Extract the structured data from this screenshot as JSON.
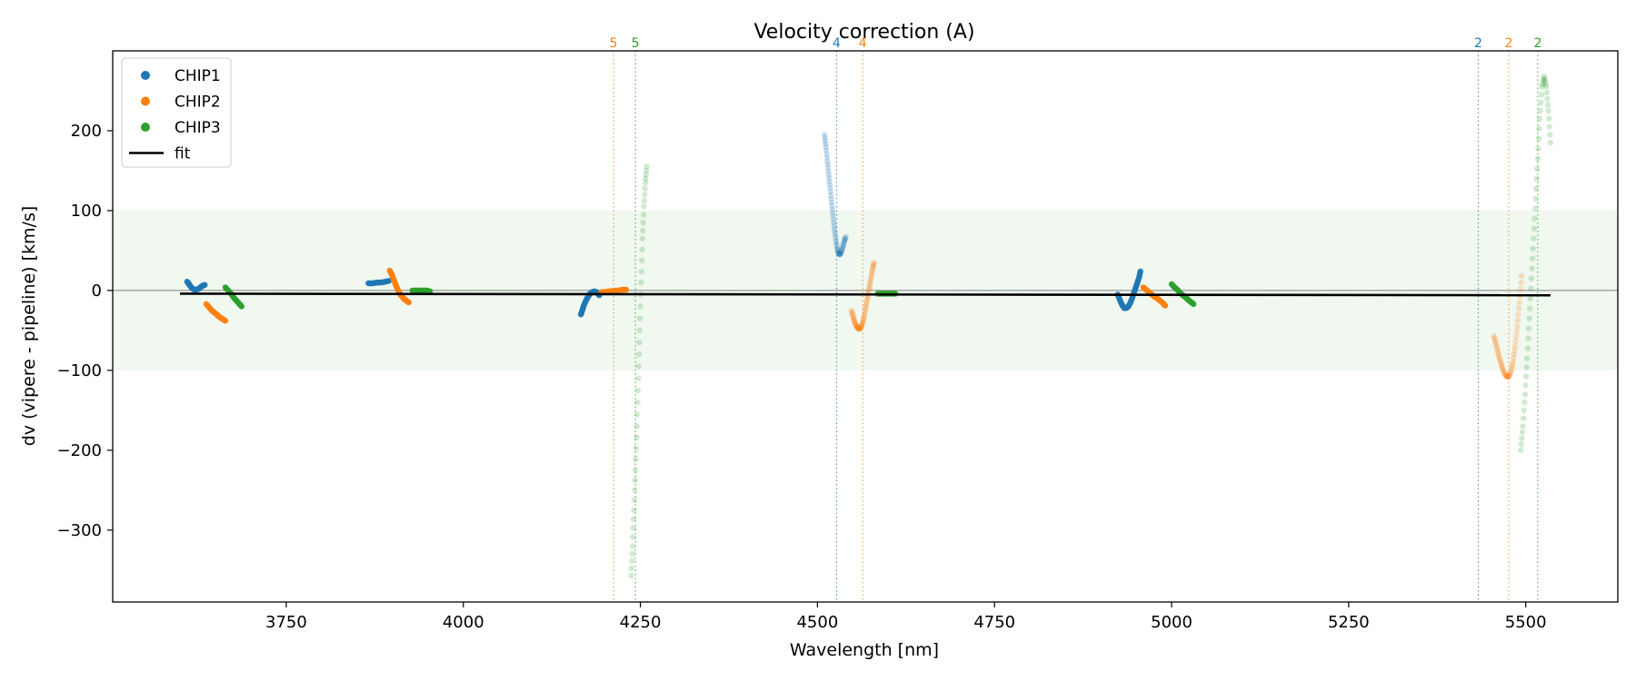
{
  "chart_data": {
    "type": "scatter",
    "title": "Velocity correction (A)",
    "xlabel": "Wavelength [nm]",
    "ylabel": "dv (vipere - pipeline) [km/s]",
    "xlim": [
      3505,
      5630
    ],
    "ylim": [
      -390,
      300
    ],
    "xticks": [
      3750,
      4000,
      4250,
      4500,
      4750,
      5000,
      5250,
      5500
    ],
    "yticks": [
      -300,
      -200,
      -100,
      0,
      100,
      200
    ],
    "ytick_labels": [
      "−300",
      "−200",
      "−100",
      "0",
      "100",
      "200"
    ],
    "tolerance_band": [
      -100,
      100
    ],
    "band_color": "#2ca02c",
    "zero_line": 0,
    "legend": {
      "position": "top-left",
      "entries": [
        {
          "label": "CHIP1",
          "color": "#1f77b4",
          "kind": "dot"
        },
        {
          "label": "CHIP2",
          "color": "#ff7f0e",
          "kind": "dot"
        },
        {
          "label": "CHIP3",
          "color": "#2ca02c",
          "kind": "dot"
        },
        {
          "label": "fit",
          "color": "#000000",
          "kind": "line"
        }
      ]
    },
    "fit": {
      "x": [
        3600,
        5535
      ],
      "y": [
        -4,
        -6
      ],
      "color": "#000000"
    },
    "order_markers": [
      {
        "x": 4212,
        "label": "5",
        "color": "#ff7f0e"
      },
      {
        "x": 4243,
        "label": "5",
        "color": "#2ca02c"
      },
      {
        "x": 4527,
        "label": "4",
        "color": "#1f77b4"
      },
      {
        "x": 4564,
        "label": "4",
        "color": "#ff7f0e"
      },
      {
        "x": 5433,
        "label": "2",
        "color": "#1f77b4"
      },
      {
        "x": 5476,
        "label": "2",
        "color": "#ff7f0e"
      },
      {
        "x": 5517,
        "label": "2",
        "color": "#2ca02c"
      }
    ],
    "series": [
      {
        "name": "CHIP1",
        "color": "#1f77b4",
        "segments": [
          {
            "alpha": 0.9,
            "x": [
              3610,
              3612,
              3614,
              3617,
              3620,
              3623,
              3626,
              3629,
              3632,
              3635
            ],
            "y": [
              11,
              9,
              6,
              3,
              1,
              1,
              2,
              4,
              6,
              7
            ]
          },
          {
            "alpha": 0.9,
            "x": [
              3866,
              3872,
              3878,
              3884,
              3890,
              3895
            ],
            "y": [
              9,
              9,
              10,
              10,
              11,
              12
            ]
          },
          {
            "alpha": 0.9,
            "x": [
              4166,
              4168,
              4170,
              4173,
              4176,
              4179,
              4182,
              4185,
              4188,
              4190,
              4192
            ],
            "y": [
              -30,
              -25,
              -19,
              -13,
              -8,
              -4,
              -2,
              -1,
              -2,
              -4,
              -6
            ]
          },
          {
            "alpha": 0.22,
            "x": [
              4510,
              4512,
              4514,
              4516,
              4518,
              4520,
              4522,
              4524,
              4526,
              4528,
              4530,
              4532,
              4534,
              4536,
              4538,
              4540
            ],
            "y": [
              195,
              180,
              162,
              145,
              128,
              110,
              93,
              77,
              63,
              52,
              46,
              45,
              49,
              55,
              62,
              67
            ]
          },
          {
            "alpha": 0.9,
            "x": [
              4924,
              4927,
              4930,
              4933,
              4936,
              4939,
              4942,
              4945,
              4948,
              4951,
              4954,
              4956
            ],
            "y": [
              -5,
              -12,
              -18,
              -22,
              -22,
              -20,
              -15,
              -8,
              0,
              8,
              16,
              24
            ]
          }
        ]
      },
      {
        "name": "CHIP2",
        "color": "#ff7f0e",
        "segments": [
          {
            "alpha": 0.9,
            "x": [
              3637,
              3641,
              3645,
              3649,
              3653,
              3657,
              3661,
              3664
            ],
            "y": [
              -17,
              -21,
              -25,
              -28,
              -31,
              -34,
              -36,
              -38
            ]
          },
          {
            "alpha": 0.9,
            "x": [
              3896,
              3899,
              3902,
              3905,
              3908,
              3911,
              3914,
              3917,
              3920,
              3923
            ],
            "y": [
              25,
              20,
              13,
              6,
              0,
              -5,
              -8,
              -11,
              -13,
              -15
            ]
          },
          {
            "alpha": 0.9,
            "x": [
              4195,
              4200,
              4205,
              4210,
              4215,
              4220,
              4225,
              4230
            ],
            "y": [
              -2,
              -2,
              -1,
              -1,
              0,
              0,
              1,
              1
            ]
          },
          {
            "alpha": 0.22,
            "x": [
              4548,
              4550,
              4552,
              4554,
              4556,
              4558,
              4560,
              4562,
              4564,
              4566,
              4568,
              4570,
              4572,
              4574,
              4576,
              4578,
              4580
            ],
            "y": [
              -25,
              -32,
              -38,
              -43,
              -46,
              -48,
              -48,
              -45,
              -40,
              -32,
              -22,
              -12,
              -2,
              8,
              18,
              28,
              35
            ]
          },
          {
            "alpha": 0.9,
            "x": [
              4960,
              4964,
              4968,
              4972,
              4976,
              4980,
              4984,
              4988,
              4991
            ],
            "y": [
              4,
              1,
              -2,
              -5,
              -8,
              -10,
              -13,
              -16,
              -19
            ]
          },
          {
            "alpha": 0.22,
            "x": [
              5455,
              5458,
              5461,
              5464,
              5467,
              5470,
              5473,
              5476,
              5479,
              5482,
              5485,
              5488,
              5491,
              5494
            ],
            "y": [
              -57,
              -67,
              -78,
              -88,
              -97,
              -104,
              -108,
              -108,
              -102,
              -90,
              -70,
              -45,
              -15,
              18
            ]
          }
        ]
      },
      {
        "name": "CHIP3",
        "color": "#2ca02c",
        "segments": [
          {
            "alpha": 0.9,
            "x": [
              3664,
              3668,
              3672,
              3676,
              3680,
              3684,
              3687
            ],
            "y": [
              4,
              0,
              -4,
              -9,
              -13,
              -17,
              -20
            ]
          },
          {
            "alpha": 0.9,
            "x": [
              3928,
              3933,
              3938,
              3943,
              3948,
              3953
            ],
            "y": [
              0,
              0,
              0,
              0,
              0,
              -1
            ]
          },
          {
            "alpha": 0.22,
            "x": [
              4237,
              4239,
              4241,
              4243,
              4245,
              4247,
              4249,
              4251,
              4253,
              4255,
              4257,
              4259
            ],
            "y": [
              -357,
              -320,
              -275,
              -225,
              -170,
              -110,
              -50,
              10,
              65,
              105,
              135,
              155
            ]
          },
          {
            "alpha": 0.9,
            "x": [
              4585,
              4590,
              4595,
              4600,
              4605,
              4610
            ],
            "y": [
              -4,
              -4,
              -4,
              -4,
              -4,
              -4
            ]
          },
          {
            "alpha": 0.9,
            "x": [
              5000,
              5004,
              5008,
              5012,
              5016,
              5020,
              5024,
              5028,
              5031
            ],
            "y": [
              8,
              4,
              1,
              -3,
              -6,
              -9,
              -12,
              -15,
              -17
            ]
          },
          {
            "alpha": 0.22,
            "x": [
              5493,
              5496,
              5499,
              5502,
              5505,
              5508,
              5511,
              5514,
              5517,
              5520,
              5523,
              5526,
              5529,
              5532,
              5535
            ],
            "y": [
              -200,
              -170,
              -130,
              -85,
              -35,
              15,
              65,
              115,
              165,
              215,
              255,
              268,
              255,
              225,
              185
            ]
          }
        ]
      }
    ]
  }
}
